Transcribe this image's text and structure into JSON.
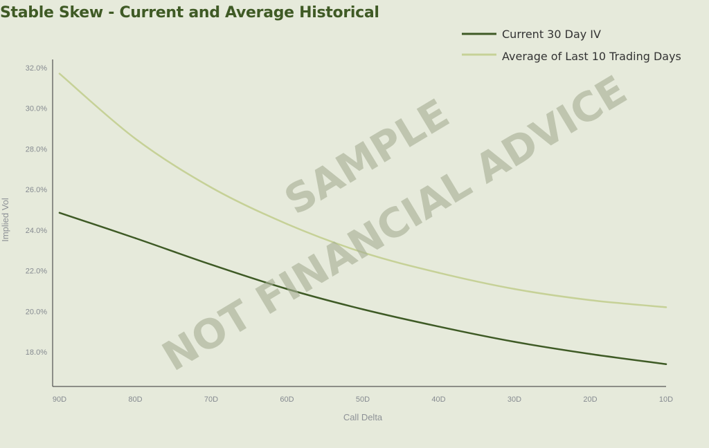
{
  "colors": {
    "background": "#e6eadb",
    "title": "#3f5a25",
    "series_current": "#3e5a25",
    "series_average": "#c6d197",
    "axis": "#333333",
    "tick_text": "#858a90",
    "watermark": "#a7ae95"
  },
  "chart_data": {
    "type": "line",
    "title": "Stable Skew - Current and Average Historical",
    "xlabel": "Call Delta",
    "ylabel": "Implied Vol",
    "categories": [
      "90D",
      "80D",
      "70D",
      "60D",
      "50D",
      "40D",
      "30D",
      "20D",
      "10D"
    ],
    "yticks": [
      "18.0%",
      "20.0%",
      "22.0%",
      "24.0%",
      "26.0%",
      "28.0%",
      "30.0%",
      "32.0%"
    ],
    "ytick_values": [
      18,
      20,
      22,
      24,
      26,
      28,
      30,
      32
    ],
    "ylim": [
      16.3,
      32.4
    ],
    "ylim_note_omitted": "",
    "grid": false,
    "legend_position": "top-right",
    "series": [
      {
        "name": "Current 30 Day IV",
        "values": [
          24.85,
          23.6,
          22.3,
          21.1,
          20.1,
          19.25,
          18.5,
          17.9,
          17.4
        ]
      },
      {
        "name": "Average of Last 10 Trading Days",
        "values": [
          31.7,
          28.5,
          26.1,
          24.3,
          22.9,
          21.9,
          21.1,
          20.55,
          20.2
        ]
      }
    ]
  },
  "watermark": {
    "line1": "SAMPLE",
    "line2": "NOT FINANCIAL ADVICE"
  }
}
